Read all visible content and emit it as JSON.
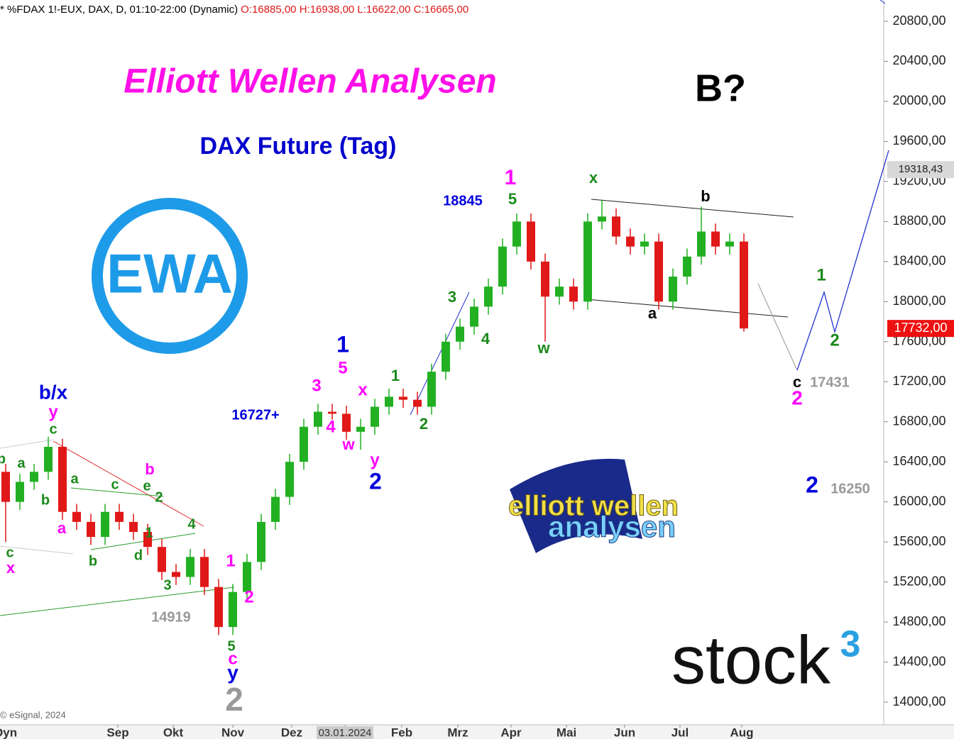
{
  "chart_data": {
    "type": "candlestick",
    "header": "* %FDAX 1!-EUX, DAX, D, 01:10-22:00 (Dynamic)",
    "ohlc_label": "O:16885,00 H:16938,00 L:16622,00 C:16665,00",
    "title": "Elliott Wellen Analysen",
    "subtitle": "DAX Future (Tag)",
    "note": "B?",
    "logo_ewa": "EWA",
    "logo_ewa_color": "#1e9be8",
    "logo_banner": [
      "elliott wellen",
      "analysen"
    ],
    "logo_stock": [
      "stock",
      "3"
    ],
    "copyright": "© eSignal, 2024",
    "axis_corner_label": "Dyn",
    "up_color": "#22b022",
    "down_color": "#e01818",
    "x": [
      0,
      1,
      2,
      3,
      4,
      5,
      6,
      7,
      8,
      9,
      10,
      11,
      12,
      13,
      14,
      15,
      16,
      17,
      18,
      19,
      20,
      21,
      22,
      23,
      24,
      25,
      26,
      27,
      28,
      29,
      30,
      31,
      32,
      33,
      34,
      35,
      36,
      37,
      38,
      39,
      40,
      41,
      42,
      43,
      44,
      45,
      46,
      47,
      48,
      49,
      50,
      51,
      52
    ],
    "open": [
      16300,
      16000,
      16200,
      16300,
      16550,
      15900,
      15800,
      15650,
      15900,
      15800,
      15700,
      15550,
      15300,
      15250,
      15450,
      15150,
      14750,
      15100,
      15400,
      15800,
      16050,
      16400,
      16750,
      16900,
      16880,
      16700,
      16750,
      16950,
      17050,
      17020,
      16950,
      17300,
      17600,
      17750,
      17950,
      18150,
      18550,
      18800,
      18400,
      18050,
      18150,
      18000,
      18800,
      18850,
      18650,
      18550,
      18600,
      18000,
      18250,
      18450,
      18700,
      18550,
      18600
    ],
    "high": [
      16380,
      16280,
      16380,
      16650,
      16630,
      15980,
      15880,
      15980,
      15980,
      15880,
      15780,
      15630,
      15380,
      15530,
      15530,
      15230,
      15180,
      15480,
      15880,
      16130,
      16480,
      16830,
      16980,
      16980,
      16960,
      16830,
      17030,
      17130,
      17130,
      17100,
      17380,
      17680,
      17830,
      18030,
      18230,
      18630,
      18880,
      18880,
      18480,
      18230,
      18230,
      18880,
      19020,
      18930,
      18730,
      18680,
      18680,
      18330,
      18530,
      18950,
      18780,
      18680,
      18680
    ],
    "low": [
      15600,
      15920,
      16120,
      16220,
      15820,
      15720,
      15570,
      15570,
      15720,
      15620,
      15470,
      15220,
      15170,
      15170,
      15070,
      14670,
      14670,
      15020,
      15320,
      15720,
      15970,
      16320,
      16670,
      16820,
      16620,
      16520,
      16670,
      16870,
      16940,
      16870,
      16870,
      17220,
      17520,
      17670,
      17870,
      18070,
      18470,
      18320,
      17600,
      17970,
      17920,
      17920,
      18720,
      18570,
      18470,
      18470,
      17920,
      17920,
      18170,
      18370,
      18470,
      18470,
      17700
    ],
    "close": [
      16000,
      16200,
      16300,
      16550,
      15900,
      15800,
      15650,
      15900,
      15800,
      15700,
      15550,
      15300,
      15250,
      15450,
      15150,
      14750,
      15100,
      15400,
      15800,
      16050,
      16400,
      16750,
      16900,
      16880,
      16700,
      16750,
      16950,
      17050,
      17020,
      16950,
      17300,
      17600,
      17750,
      17950,
      18150,
      18550,
      18800,
      18400,
      18050,
      18150,
      18000,
      18800,
      18850,
      18650,
      18550,
      18600,
      18000,
      18250,
      18450,
      18700,
      18550,
      18600,
      17732
    ],
    "xlim": [
      -0.4,
      61.8
    ],
    "xticks": [
      {
        "value": 7.9,
        "label": "Sep"
      },
      {
        "value": 11.8,
        "label": "Okt"
      },
      {
        "value": 16,
        "label": "Nov"
      },
      {
        "value": 20.15,
        "label": "Dez"
      },
      {
        "value": 23.9,
        "label": "03.01.2024"
      },
      {
        "value": 27.9,
        "label": "Feb"
      },
      {
        "value": 31.85,
        "label": "Mrz"
      },
      {
        "value": 35.6,
        "label": "Apr"
      },
      {
        "value": 39.5,
        "label": "Mai"
      },
      {
        "value": 43.6,
        "label": "Jun"
      },
      {
        "value": 47.5,
        "label": "Jul"
      },
      {
        "value": 51.85,
        "label": "Aug"
      }
    ],
    "ylim": [
      14000,
      20800
    ],
    "yticks": [
      {
        "value": 14000,
        "label": "14000,00"
      },
      {
        "value": 14400,
        "label": "14400,00"
      },
      {
        "value": 14800,
        "label": "14800,00"
      },
      {
        "value": 15200,
        "label": "15200,00"
      },
      {
        "value": 15600,
        "label": "15600,00"
      },
      {
        "value": 16000,
        "label": "16000,00"
      },
      {
        "value": 16400,
        "label": "16400,00"
      },
      {
        "value": 16800,
        "label": "16800,00"
      },
      {
        "value": 17200,
        "label": "17200,00"
      },
      {
        "value": 17600,
        "label": "17600,00"
      },
      {
        "value": 18000,
        "label": "18000,00"
      },
      {
        "value": 18400,
        "label": "18400,00"
      },
      {
        "value": 18800,
        "label": "18800,00"
      },
      {
        "value": 19200,
        "label": "19200,00"
      },
      {
        "value": 19600,
        "label": "19600,00"
      },
      {
        "value": 20000,
        "label": "20000,00"
      },
      {
        "value": 20400,
        "label": "20400,00"
      },
      {
        "value": 20800,
        "label": "20800,00"
      }
    ],
    "price_markers": [
      {
        "value": 19318.43,
        "label": "19318,43",
        "color": "#d8d8d8"
      },
      {
        "value": 17732,
        "label": "17732,00",
        "color": "#ee1111"
      }
    ],
    "annotations": [
      {
        "text": "b/x",
        "color": "#0000dd"
      },
      {
        "text": "y",
        "color": "#ff00ff"
      },
      {
        "text": "c",
        "color": "#1a8a1a"
      },
      {
        "text": "b",
        "color": "#1a8a1a"
      },
      {
        "text": "a",
        "color": "#1a8a1a"
      },
      {
        "text": "b",
        "color": "#1a8a1a"
      },
      {
        "text": "c",
        "color": "#1a8a1a"
      },
      {
        "text": "x",
        "color": "#ff00ff"
      },
      {
        "text": "a",
        "color": "#ff00ff"
      },
      {
        "text": "a",
        "color": "#1a8a1a"
      },
      {
        "text": "c",
        "color": "#1a8a1a"
      },
      {
        "text": "e",
        "color": "#1a8a1a"
      },
      {
        "text": "b",
        "color": "#ff00ff"
      },
      {
        "text": "2",
        "color": "#1a8a1a"
      },
      {
        "text": "1",
        "color": "#1a8a1a"
      },
      {
        "text": "4",
        "color": "#1a8a1a"
      },
      {
        "text": "b",
        "color": "#1a8a1a"
      },
      {
        "text": "d",
        "color": "#1a8a1a"
      },
      {
        "text": "3",
        "color": "#1a8a1a"
      },
      {
        "text": "1",
        "color": "#ff00ff"
      },
      {
        "text": "2",
        "color": "#ff00ff"
      },
      {
        "text": "14919",
        "color": "#999999"
      },
      {
        "text": "5",
        "color": "#1a8a1a"
      },
      {
        "text": "c",
        "color": "#ff00ff"
      },
      {
        "text": "y",
        "color": "#0000dd"
      },
      {
        "text": "2",
        "color": "#999999"
      },
      {
        "text": "16727+",
        "color": "#0000dd"
      },
      {
        "text": "3",
        "color": "#ff00ff"
      },
      {
        "text": "4",
        "color": "#ff00ff"
      },
      {
        "text": "w",
        "color": "#ff00ff"
      },
      {
        "text": "x",
        "color": "#ff00ff"
      },
      {
        "text": "1",
        "color": "#0000dd"
      },
      {
        "text": "5",
        "color": "#ff00ff"
      },
      {
        "text": "y",
        "color": "#ff00ff"
      },
      {
        "text": "2",
        "color": "#0000dd"
      },
      {
        "text": "1",
        "color": "#1a8a1a"
      },
      {
        "text": "2",
        "color": "#1a8a1a"
      },
      {
        "text": "3",
        "color": "#1a8a1a"
      },
      {
        "text": "4",
        "color": "#1a8a1a"
      },
      {
        "text": "18845",
        "color": "#0000dd"
      },
      {
        "text": "1",
        "color": "#ff00ff"
      },
      {
        "text": "5",
        "color": "#1a8a1a"
      },
      {
        "text": "x",
        "color": "#1a8a1a"
      },
      {
        "text": "w",
        "color": "#1a8a1a"
      },
      {
        "text": "b",
        "color": "#000000"
      },
      {
        "text": "a",
        "color": "#000000"
      },
      {
        "text": "1",
        "color": "#1a8a1a"
      },
      {
        "text": "2",
        "color": "#1a8a1a"
      },
      {
        "text": "c",
        "color": "#000000"
      },
      {
        "text": "17431",
        "color": "#999999"
      },
      {
        "text": "2",
        "color": "#ff00ff"
      },
      {
        "text": "2",
        "color": "#0000dd"
      },
      {
        "text": "16250",
        "color": "#999999"
      }
    ]
  }
}
